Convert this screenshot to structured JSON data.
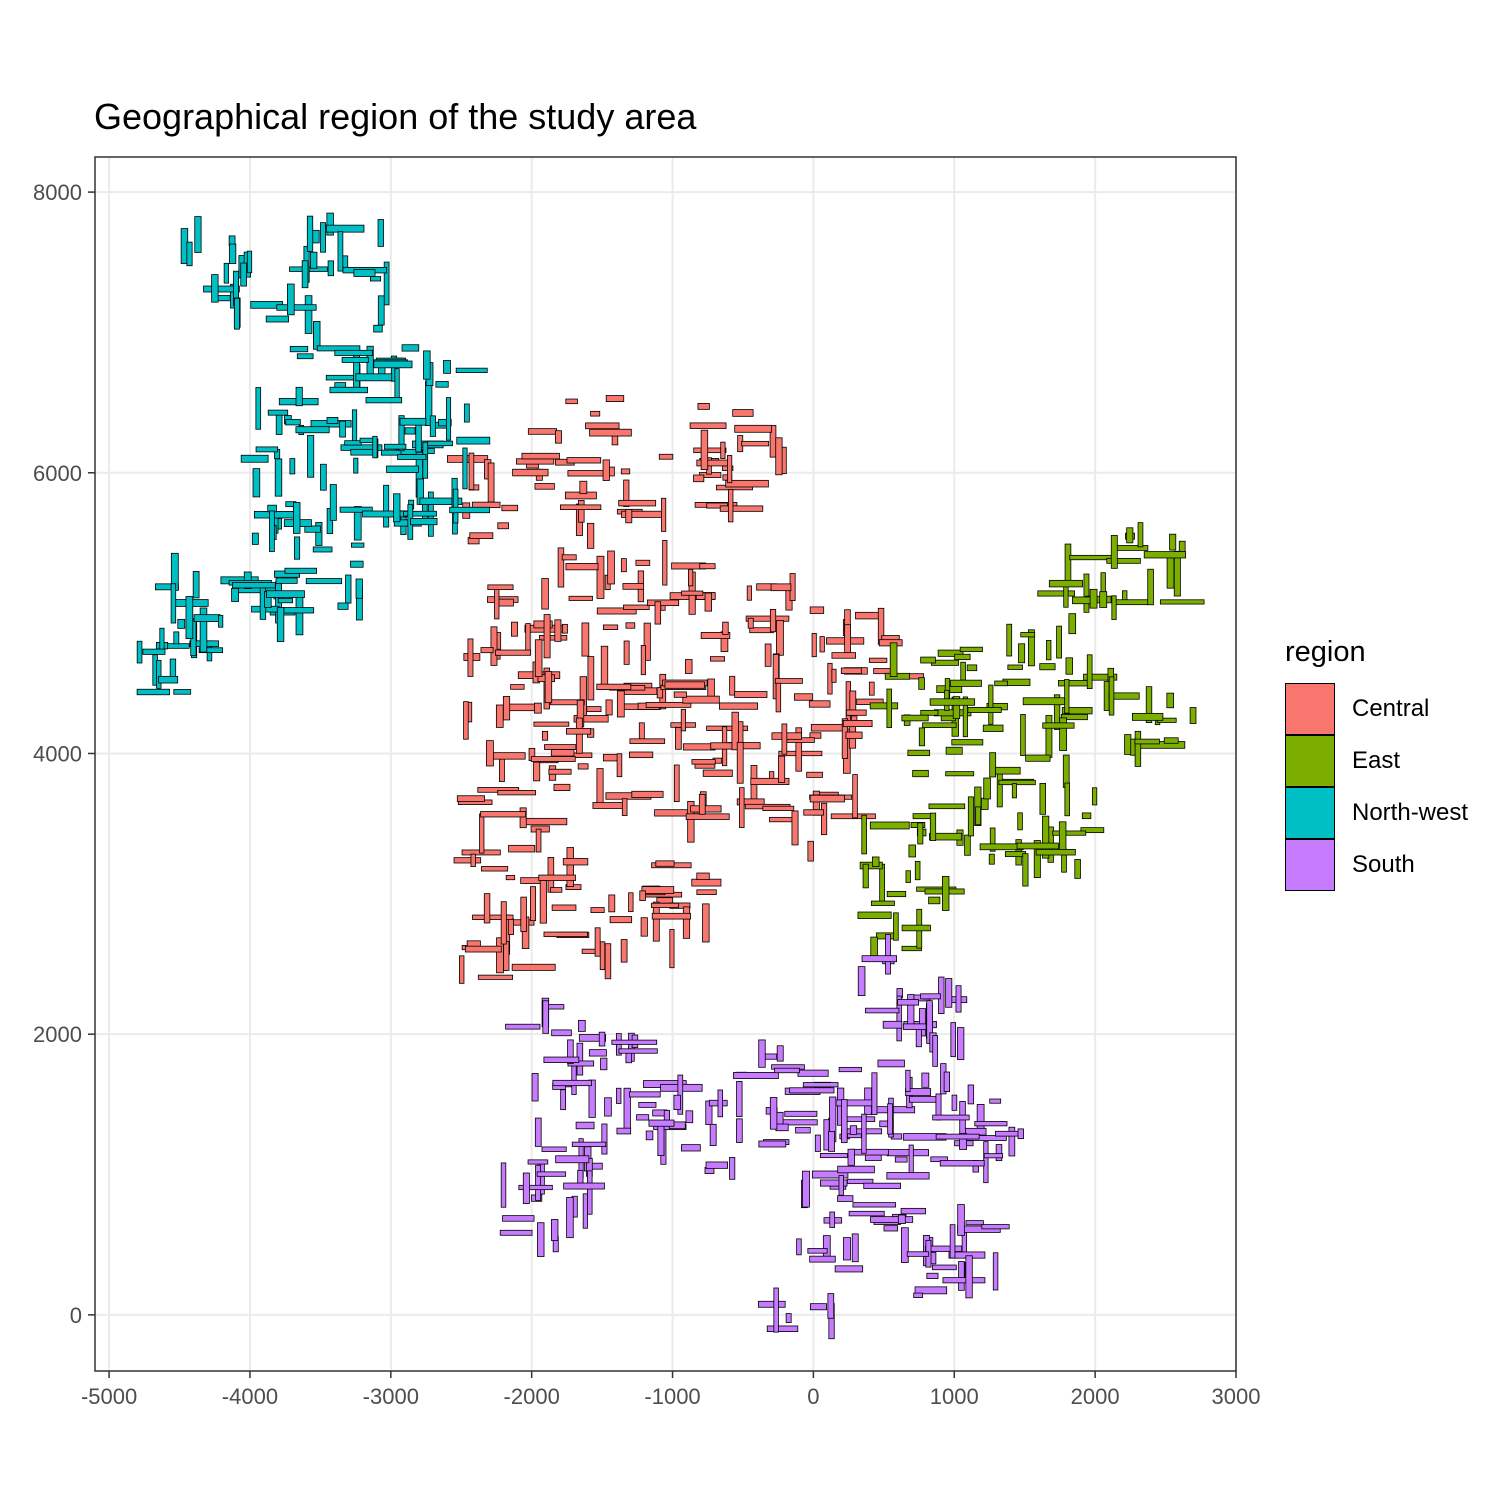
{
  "chart_data": {
    "type": "scatter",
    "title": "Geographical region of the study area",
    "xlabel": "",
    "ylabel": "",
    "xlim": [
      -5100,
      3000
    ],
    "ylim": [
      -400,
      8250
    ],
    "x_ticks": [
      -5000,
      -4000,
      -3000,
      -2000,
      -1000,
      0,
      1000,
      2000,
      3000
    ],
    "y_ticks": [
      0,
      2000,
      4000,
      6000,
      8000
    ],
    "x_tick_labels": [
      "-5000",
      "-4000",
      "-3000",
      "-2000",
      "-1000",
      "0",
      "1000",
      "2000",
      "3000"
    ],
    "y_tick_labels": [
      "0",
      "2000",
      "4000",
      "6000",
      "8000"
    ],
    "grid": true,
    "legend": {
      "title": "region",
      "position": "right",
      "entries": [
        {
          "label": "Central",
          "color": "#F8766D"
        },
        {
          "label": "East",
          "color": "#7CAE00"
        },
        {
          "label": "North-west",
          "color": "#00BFC4"
        },
        {
          "label": "South",
          "color": "#C77CFF"
        }
      ]
    },
    "series": [
      {
        "name": "Central",
        "color": "#F8766D",
        "centers": [
          [
            -2200,
            5800
          ],
          [
            -1500,
            5850
          ],
          [
            -800,
            6000
          ],
          [
            -500,
            6200
          ],
          [
            -1700,
            6250
          ],
          [
            -2000,
            5100
          ],
          [
            -1500,
            5100
          ],
          [
            -1000,
            5200
          ],
          [
            -400,
            5000
          ],
          [
            300,
            4800
          ],
          [
            -2200,
            4500
          ],
          [
            -1700,
            4400
          ],
          [
            -1200,
            4500
          ],
          [
            -700,
            4400
          ],
          [
            0,
            4300
          ],
          [
            400,
            4400
          ],
          [
            -2000,
            4000
          ],
          [
            -1500,
            3900
          ],
          [
            -900,
            3800
          ],
          [
            -400,
            3900
          ],
          [
            0,
            3600
          ],
          [
            -2200,
            3400
          ],
          [
            -1900,
            3000
          ],
          [
            -1300,
            2800
          ],
          [
            -1000,
            3000
          ],
          [
            -2200,
            2700
          ]
        ]
      },
      {
        "name": "East",
        "color": "#7CAE00",
        "centers": [
          [
            800,
            4500
          ],
          [
            1300,
            4550
          ],
          [
            1900,
            4500
          ],
          [
            2400,
            4200
          ],
          [
            1000,
            4100
          ],
          [
            1500,
            3900
          ],
          [
            1200,
            3500
          ],
          [
            1700,
            3400
          ],
          [
            2000,
            5200
          ],
          [
            2400,
            5300
          ],
          [
            650,
            3300
          ],
          [
            650,
            2900
          ]
        ]
      },
      {
        "name": "North-west",
        "color": "#00BFC4",
        "centers": [
          [
            -4300,
            7400
          ],
          [
            -3800,
            7200
          ],
          [
            -3300,
            7600
          ],
          [
            -3100,
            6900
          ],
          [
            -3500,
            6600
          ],
          [
            -3000,
            6400
          ],
          [
            -2700,
            6500
          ],
          [
            -3700,
            6200
          ],
          [
            -3600,
            5700
          ],
          [
            -4000,
            5300
          ],
          [
            -3500,
            5200
          ],
          [
            -4300,
            5000
          ],
          [
            -4500,
            4700
          ],
          [
            -3000,
            5900
          ],
          [
            -2700,
            5850
          ]
        ]
      },
      {
        "name": "South",
        "color": "#C77CFF",
        "centers": [
          [
            -1800,
            1900
          ],
          [
            -1500,
            1700
          ],
          [
            -1200,
            1400
          ],
          [
            -800,
            1300
          ],
          [
            -1700,
            1100
          ],
          [
            -1900,
            800
          ],
          [
            -300,
            1600
          ],
          [
            0,
            1500
          ],
          [
            500,
            1400
          ],
          [
            900,
            1400
          ],
          [
            1200,
            1300
          ],
          [
            600,
            2300
          ],
          [
            800,
            2000
          ],
          [
            400,
            900
          ],
          [
            800,
            700
          ],
          [
            1000,
            400
          ],
          [
            0,
            200
          ],
          [
            200,
            1100
          ]
        ]
      }
    ]
  }
}
